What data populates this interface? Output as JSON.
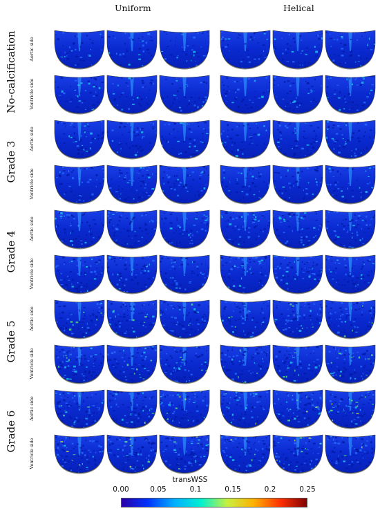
{
  "columns": {
    "left": "Uniform",
    "right": "Helical"
  },
  "groups": [
    {
      "label": "No-calcification",
      "rows": [
        "Aortic side",
        "Ventricle side"
      ]
    },
    {
      "label": "Grade 3",
      "rows": [
        "Aortic side",
        "Ventricle side"
      ]
    },
    {
      "label": "Grade 4",
      "rows": [
        "Aortic side",
        "Ventricle side"
      ]
    },
    {
      "label": "Grade 5",
      "rows": [
        "Aortic side",
        "Ventricle side"
      ]
    },
    {
      "label": "Grade 6",
      "rows": [
        "Aortic side",
        "Ventricle side"
      ]
    }
  ],
  "colorbar": {
    "title": "transWSS",
    "ticks": [
      "0.00",
      "0.05",
      "0.1",
      "0.15",
      "0.2",
      "0.25"
    ],
    "min": 0,
    "max": 0.25,
    "colors": [
      "#2a00a8",
      "#0033ff",
      "#00b0ff",
      "#00f0d0",
      "#c8f040",
      "#ffb000",
      "#ff3000",
      "#800000"
    ]
  }
}
